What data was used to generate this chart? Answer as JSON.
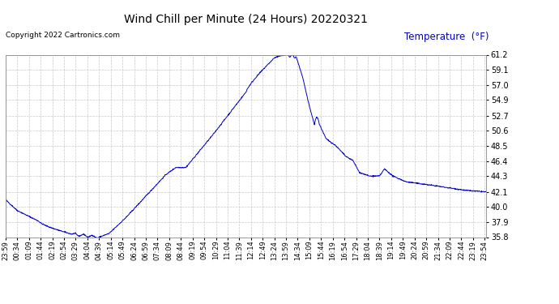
{
  "title": "Wind Chill per Minute (24 Hours) 20220321",
  "copyright": "Copyright 2022 Cartronics.com",
  "ylabel": "Temperature  (°F)",
  "ylabel_color": "#0000cc",
  "line_color": "#0000cc",
  "bg_color": "#ffffff",
  "plot_bg_color": "#ffffff",
  "grid_color": "#bbbbbb",
  "ylim": [
    35.8,
    61.2
  ],
  "yticks": [
    35.8,
    37.9,
    40.0,
    42.1,
    44.3,
    46.4,
    48.5,
    50.6,
    52.7,
    54.9,
    57.0,
    59.1,
    61.2
  ],
  "num_points": 1441,
  "xtick_interval_minutes": 35
}
